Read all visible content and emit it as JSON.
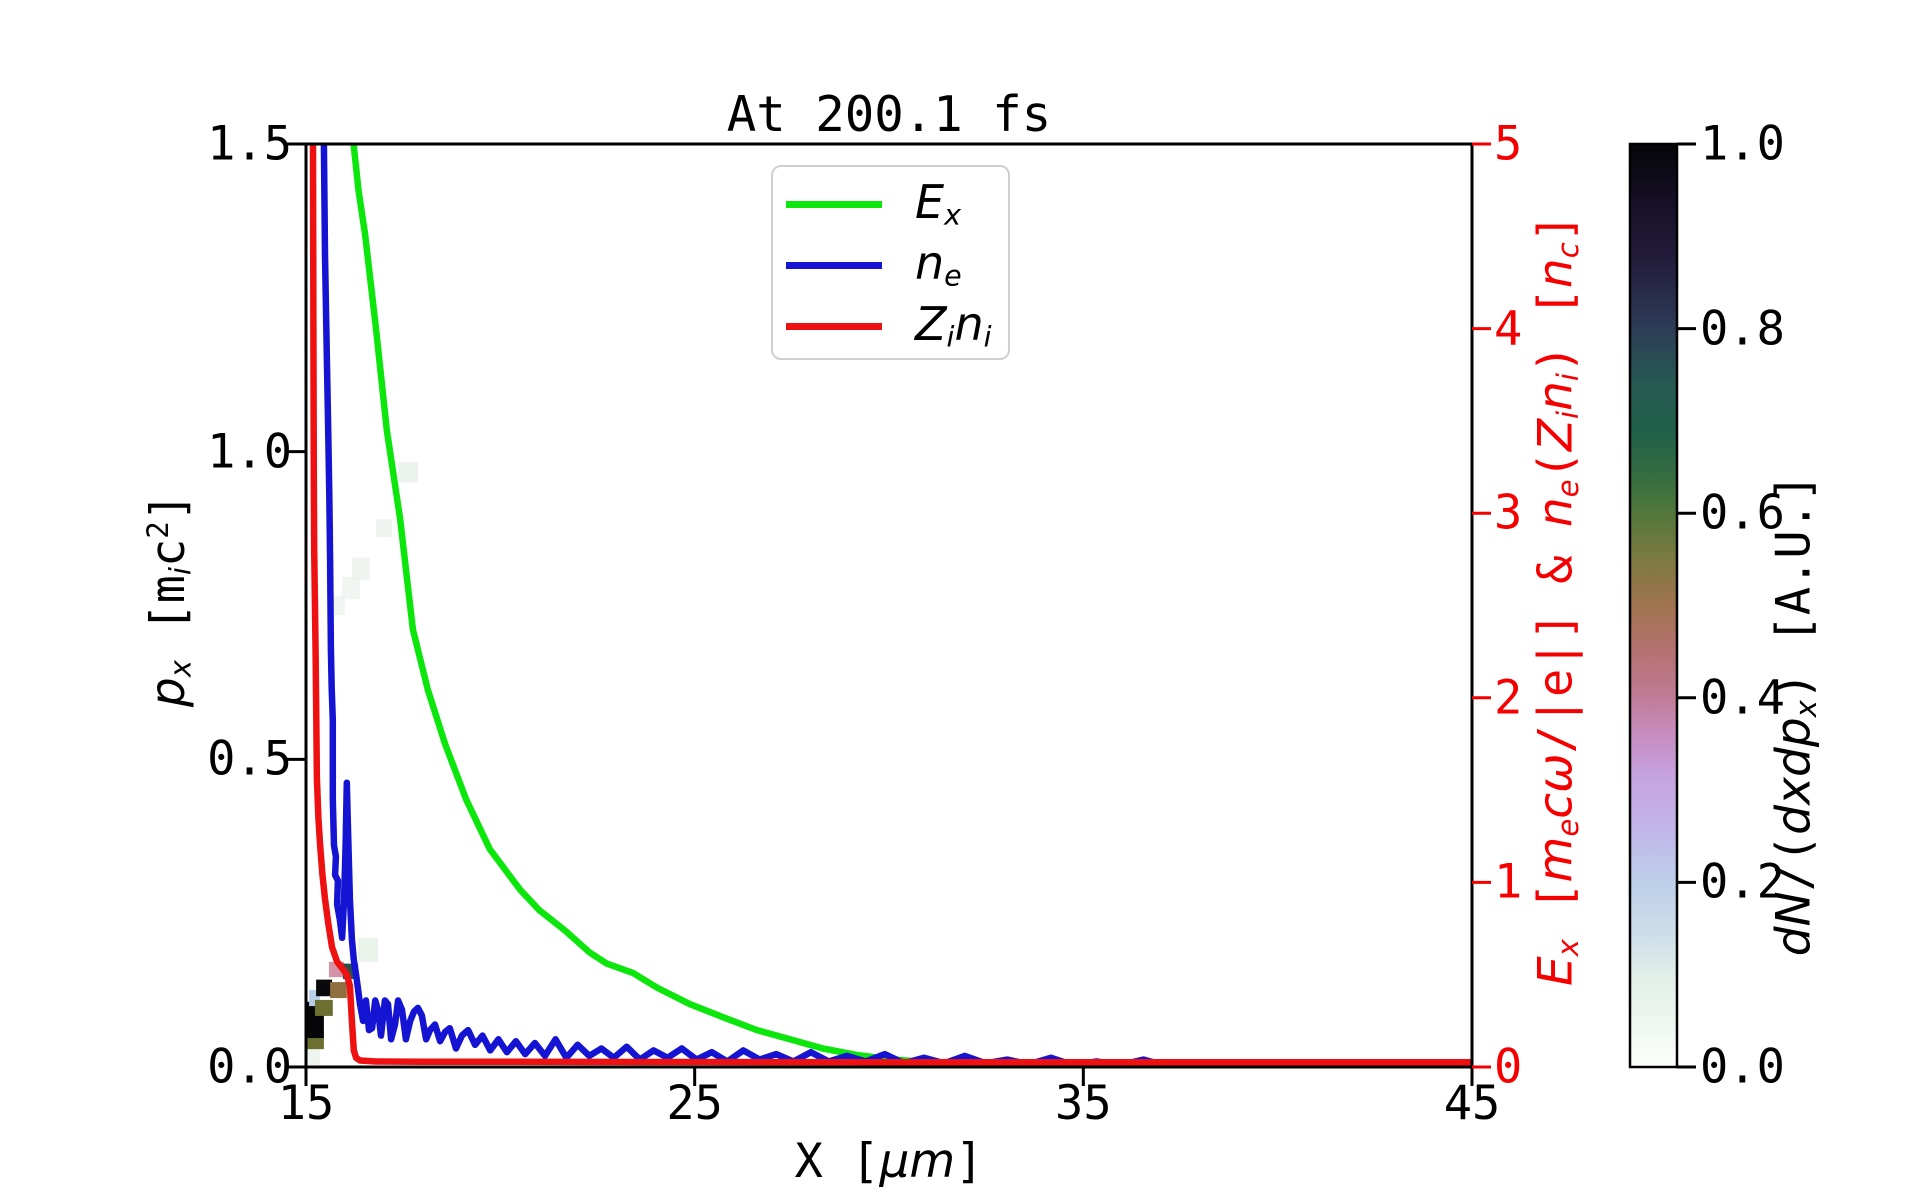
{
  "figure": {
    "title": "At 200.1 fs",
    "background": "#ffffff"
  },
  "axes": {
    "bottom": {
      "label_parts": [
        {
          "t": "X [",
          "s": "up"
        },
        {
          "t": "μm",
          "s": "it"
        },
        {
          "t": "]",
          "s": "up"
        }
      ],
      "ticks": [
        {
          "v": 15,
          "label": "15"
        },
        {
          "v": 25,
          "label": "25"
        },
        {
          "v": 35,
          "label": "35"
        },
        {
          "v": 45,
          "label": "45"
        }
      ],
      "range": [
        15,
        45
      ],
      "color": "#000000"
    },
    "left": {
      "label_parts": [
        {
          "t": "p",
          "s": "it"
        },
        {
          "t": "x",
          "s": "sub"
        },
        {
          "t": " [m",
          "s": "up"
        },
        {
          "t": "i",
          "s": "sub"
        },
        {
          "t": "c",
          "s": "up"
        },
        {
          "t": "2",
          "s": "sup"
        },
        {
          "t": "]",
          "s": "up"
        }
      ],
      "ticks": [
        {
          "v": 1.5,
          "label": "1.5"
        },
        {
          "v": 1.0,
          "label": "1.0"
        },
        {
          "v": 0.5,
          "label": "0.5"
        },
        {
          "v": 0.0,
          "label": "0.0"
        }
      ],
      "range": [
        0,
        1.5
      ],
      "color": "#000000"
    },
    "right": {
      "label_parts": [
        {
          "t": "E",
          "s": "it"
        },
        {
          "t": "x",
          "s": "sub"
        },
        {
          "t": " [",
          "s": "up"
        },
        {
          "t": "m",
          "s": "it"
        },
        {
          "t": "e",
          "s": "sub"
        },
        {
          "t": "c",
          "s": "it"
        },
        {
          "t": "ω",
          "s": "it"
        },
        {
          "t": "/|e|] & ",
          "s": "up"
        },
        {
          "t": "n",
          "s": "it"
        },
        {
          "t": "e",
          "s": "sub"
        },
        {
          "t": "(",
          "s": "up"
        },
        {
          "t": "Z",
          "s": "it"
        },
        {
          "t": "i",
          "s": "sub"
        },
        {
          "t": "n",
          "s": "it"
        },
        {
          "t": "i",
          "s": "sub"
        },
        {
          "t": ") [",
          "s": "up"
        },
        {
          "t": "n",
          "s": "it"
        },
        {
          "t": "c",
          "s": "sub"
        },
        {
          "t": "]",
          "s": "up"
        }
      ],
      "ticks": [
        {
          "v": 5,
          "label": "5"
        },
        {
          "v": 4,
          "label": "4"
        },
        {
          "v": 3,
          "label": "3"
        },
        {
          "v": 2,
          "label": "2"
        },
        {
          "v": 1,
          "label": "1"
        },
        {
          "v": 0,
          "label": "0"
        }
      ],
      "range": [
        0,
        5
      ],
      "color": "#f40000"
    }
  },
  "legend": {
    "items": [
      {
        "color": "#0ce60c",
        "parts": [
          {
            "t": "E",
            "s": "it"
          },
          {
            "t": "x",
            "s": "sub"
          }
        ]
      },
      {
        "color": "#1414d2",
        "parts": [
          {
            "t": "n",
            "s": "it"
          },
          {
            "t": "e",
            "s": "sub"
          }
        ]
      },
      {
        "color": "#ee1111",
        "parts": [
          {
            "t": "Z",
            "s": "it"
          },
          {
            "t": "i",
            "s": "sub"
          },
          {
            "t": "n",
            "s": "it"
          },
          {
            "t": "i",
            "s": "sub"
          }
        ]
      }
    ]
  },
  "colorbar": {
    "label_parts": [
      {
        "t": "d",
        "s": "it"
      },
      {
        "t": "N",
        "s": "it"
      },
      {
        "t": "/(",
        "s": "up"
      },
      {
        "t": "d",
        "s": "it"
      },
      {
        "t": "x",
        "s": "it"
      },
      {
        "t": "d",
        "s": "it"
      },
      {
        "t": "p",
        "s": "it"
      },
      {
        "t": "x",
        "s": "sub"
      },
      {
        "t": ") [A.U.]",
        "s": "up"
      }
    ],
    "ticks": [
      {
        "f": 1.0,
        "label": "1.0"
      },
      {
        "f": 0.8,
        "label": "0.8"
      },
      {
        "f": 0.6,
        "label": "0.6"
      },
      {
        "f": 0.4,
        "label": "0.4"
      },
      {
        "f": 0.2,
        "label": "0.2"
      },
      {
        "f": 0.0,
        "label": "0.0"
      }
    ],
    "gradient": [
      {
        "f": 1.0,
        "c": "#050507"
      },
      {
        "f": 0.93,
        "c": "#17112a"
      },
      {
        "f": 0.87,
        "c": "#241e3d"
      },
      {
        "f": 0.8,
        "c": "#2d3c57"
      },
      {
        "f": 0.74,
        "c": "#265a52"
      },
      {
        "f": 0.69,
        "c": "#1f6049"
      },
      {
        "f": 0.63,
        "c": "#3a7040"
      },
      {
        "f": 0.6,
        "c": "#53783a"
      },
      {
        "f": 0.55,
        "c": "#7c7a40"
      },
      {
        "f": 0.5,
        "c": "#a1734f"
      },
      {
        "f": 0.45,
        "c": "#b47271"
      },
      {
        "f": 0.4,
        "c": "#c07b96"
      },
      {
        "f": 0.36,
        "c": "#c78cc0"
      },
      {
        "f": 0.31,
        "c": "#c6a5e2"
      },
      {
        "f": 0.26,
        "c": "#c2b4e9"
      },
      {
        "f": 0.2,
        "c": "#bdcfe9"
      },
      {
        "f": 0.14,
        "c": "#cfdfe9"
      },
      {
        "f": 0.1,
        "c": "#dfeee6"
      },
      {
        "f": 0.05,
        "c": "#eef6ee"
      },
      {
        "f": 0.0,
        "c": "#fdfffd"
      }
    ]
  },
  "chart_data": {
    "type": "composite",
    "title": "At 200.1 fs",
    "xlabel": "X [um]",
    "ylabel_left": "p_x [m_i c^2]",
    "ylabel_right": "E_x [m_e c w/|e|] & n_e(Z_i n_i) [n_c]",
    "x_range": [
      15,
      45
    ],
    "left_range": [
      0,
      1.5
    ],
    "right_range": [
      0,
      5
    ],
    "grid": false,
    "legend_position": "upper center",
    "series": [
      {
        "name": "E_x",
        "color": "#0ce60c",
        "axis": "right",
        "points": [
          [
            15.9,
            7.0
          ],
          [
            16.05,
            5.8
          ],
          [
            16.2,
            5.05
          ],
          [
            16.35,
            4.75
          ],
          [
            16.52,
            4.51
          ],
          [
            16.8,
            4.0
          ],
          [
            17.08,
            3.45
          ],
          [
            17.42,
            2.97
          ],
          [
            17.75,
            2.37
          ],
          [
            18.14,
            2.04
          ],
          [
            18.58,
            1.75
          ],
          [
            19.12,
            1.45
          ],
          [
            19.73,
            1.18
          ],
          [
            20.51,
            0.96
          ],
          [
            21.0,
            0.85
          ],
          [
            21.66,
            0.74
          ],
          [
            22.3,
            0.62
          ],
          [
            22.74,
            0.56
          ],
          [
            23.41,
            0.51
          ],
          [
            24.03,
            0.43
          ],
          [
            24.88,
            0.34
          ],
          [
            25.73,
            0.27
          ],
          [
            26.6,
            0.2
          ],
          [
            27.45,
            0.15
          ],
          [
            28.3,
            0.1
          ],
          [
            29.17,
            0.065
          ],
          [
            30.02,
            0.043
          ],
          [
            30.87,
            0.027
          ],
          [
            31.75,
            0.021
          ],
          [
            32.6,
            0.013
          ],
          [
            33.5,
            0.009
          ],
          [
            34.5,
            0.006
          ],
          [
            35.5,
            0.004
          ],
          [
            37.0,
            0.003
          ],
          [
            39.0,
            0.002
          ],
          [
            42.0,
            0.001
          ],
          [
            45.0,
            0.001
          ]
        ]
      },
      {
        "name": "n_e",
        "color": "#1414d2",
        "axis": "right",
        "points": [
          [
            15.44,
            6.5
          ],
          [
            15.46,
            5.0
          ],
          [
            15.49,
            4.4
          ],
          [
            15.51,
            4.16
          ],
          [
            15.54,
            3.8
          ],
          [
            15.57,
            3.45
          ],
          [
            15.6,
            3.1
          ],
          [
            15.62,
            2.75
          ],
          [
            15.64,
            2.26
          ],
          [
            15.66,
            2.05
          ],
          [
            15.69,
            1.88
          ],
          [
            15.69,
            1.45
          ],
          [
            15.72,
            1.2
          ],
          [
            15.77,
            1.14
          ],
          [
            15.75,
            1.04
          ],
          [
            15.82,
            1.01
          ],
          [
            15.8,
            0.88
          ],
          [
            15.87,
            0.8
          ],
          [
            15.93,
            0.7
          ],
          [
            15.98,
            0.91
          ],
          [
            16.02,
            1.2
          ],
          [
            16.05,
            1.54
          ],
          [
            16.08,
            1.29
          ],
          [
            16.13,
            0.91
          ],
          [
            16.18,
            0.69
          ],
          [
            16.23,
            0.58
          ],
          [
            16.29,
            0.5
          ],
          [
            16.34,
            0.42
          ],
          [
            16.39,
            0.34
          ],
          [
            16.47,
            0.25
          ],
          [
            16.54,
            0.36
          ],
          [
            16.62,
            0.2
          ],
          [
            16.7,
            0.21
          ],
          [
            16.78,
            0.36
          ],
          [
            16.85,
            0.31
          ],
          [
            16.93,
            0.17
          ],
          [
            17.03,
            0.36
          ],
          [
            17.11,
            0.34
          ],
          [
            17.19,
            0.15
          ],
          [
            17.29,
            0.23
          ],
          [
            17.37,
            0.36
          ],
          [
            17.47,
            0.31
          ],
          [
            17.57,
            0.15
          ],
          [
            17.68,
            0.25
          ],
          [
            17.78,
            0.3
          ],
          [
            17.88,
            0.32
          ],
          [
            17.98,
            0.28
          ],
          [
            18.09,
            0.15
          ],
          [
            18.19,
            0.2
          ],
          [
            18.32,
            0.23
          ],
          [
            18.45,
            0.14
          ],
          [
            18.58,
            0.19
          ],
          [
            18.7,
            0.21
          ],
          [
            18.86,
            0.1
          ],
          [
            19.01,
            0.17
          ],
          [
            19.17,
            0.2
          ],
          [
            19.35,
            0.12
          ],
          [
            19.54,
            0.17
          ],
          [
            19.74,
            0.09
          ],
          [
            19.95,
            0.15
          ],
          [
            20.17,
            0.08
          ],
          [
            20.4,
            0.14
          ],
          [
            20.64,
            0.07
          ],
          [
            20.89,
            0.13
          ],
          [
            21.15,
            0.06
          ],
          [
            21.42,
            0.15
          ],
          [
            21.7,
            0.05
          ],
          [
            21.99,
            0.12
          ],
          [
            22.29,
            0.06
          ],
          [
            22.6,
            0.1
          ],
          [
            22.92,
            0.05
          ],
          [
            23.25,
            0.11
          ],
          [
            23.59,
            0.04
          ],
          [
            23.94,
            0.09
          ],
          [
            24.3,
            0.05
          ],
          [
            24.67,
            0.1
          ],
          [
            25.05,
            0.04
          ],
          [
            25.44,
            0.08
          ],
          [
            25.84,
            0.03
          ],
          [
            26.25,
            0.09
          ],
          [
            26.67,
            0.04
          ],
          [
            27.1,
            0.07
          ],
          [
            27.54,
            0.03
          ],
          [
            27.99,
            0.08
          ],
          [
            28.45,
            0.03
          ],
          [
            28.92,
            0.06
          ],
          [
            29.4,
            0.03
          ],
          [
            29.89,
            0.07
          ],
          [
            30.39,
            0.02
          ],
          [
            30.9,
            0.05
          ],
          [
            31.42,
            0.02
          ],
          [
            31.95,
            0.06
          ],
          [
            32.49,
            0.02
          ],
          [
            33.04,
            0.04
          ],
          [
            33.6,
            0.015
          ],
          [
            34.17,
            0.05
          ],
          [
            34.75,
            0.01
          ],
          [
            35.34,
            0.03
          ],
          [
            35.94,
            0.01
          ],
          [
            36.55,
            0.04
          ],
          [
            37.17,
            0.005
          ],
          [
            37.8,
            0.02
          ],
          [
            38.2,
            0.003
          ],
          [
            39.0,
            0.002
          ],
          [
            41.0,
            0.001
          ],
          [
            45.0,
            0.001
          ]
        ]
      },
      {
        "name": "Z_i n_i",
        "color": "#ee1111",
        "axis": "right",
        "points": [
          [
            15.17,
            6.5
          ],
          [
            15.18,
            5.0
          ],
          [
            15.19,
            4.0
          ],
          [
            15.2,
            3.2
          ],
          [
            15.21,
            2.8
          ],
          [
            15.23,
            2.53
          ],
          [
            15.25,
            2.2
          ],
          [
            15.28,
            1.56
          ],
          [
            15.32,
            1.35
          ],
          [
            15.36,
            1.21
          ],
          [
            15.42,
            1.05
          ],
          [
            15.49,
            0.91
          ],
          [
            15.57,
            0.78
          ],
          [
            15.67,
            0.65
          ],
          [
            15.8,
            0.57
          ],
          [
            15.95,
            0.53
          ],
          [
            16.05,
            0.5
          ],
          [
            16.13,
            0.44
          ],
          [
            16.18,
            0.25
          ],
          [
            16.23,
            0.09
          ],
          [
            16.29,
            0.05
          ],
          [
            16.39,
            0.035
          ],
          [
            16.8,
            0.03
          ],
          [
            18.0,
            0.028
          ],
          [
            20.0,
            0.028
          ],
          [
            25.0,
            0.027
          ],
          [
            30.0,
            0.026
          ],
          [
            35.0,
            0.026
          ],
          [
            40.0,
            0.026
          ],
          [
            45.0,
            0.026
          ]
        ]
      }
    ],
    "heatmap": {
      "quantity": "dN/(dxdp_x) [A.U.]",
      "colormap": "cubehelix_r",
      "value_range": [
        0.0,
        1.0
      ],
      "cells": [
        {
          "x": 15.0,
          "p": 0.003,
          "w": 0.36,
          "h": 0.026,
          "c": "#edf5ee",
          "a": 1
        },
        {
          "x": 15.0,
          "p": 0.029,
          "w": 0.46,
          "h": 0.03,
          "c": "#6b7030",
          "a": 1
        },
        {
          "x": 15.0,
          "p": 0.047,
          "w": 0.46,
          "h": 0.059,
          "c": "#060608",
          "a": 1
        },
        {
          "x": 15.08,
          "p": 0.099,
          "w": 0.28,
          "h": 0.026,
          "c": "#b9cfe8",
          "a": 1
        },
        {
          "x": 15.23,
          "p": 0.083,
          "w": 0.46,
          "h": 0.026,
          "c": "#6b7030",
          "a": 1
        },
        {
          "x": 15.26,
          "p": 0.115,
          "w": 0.41,
          "h": 0.027,
          "c": "#0a0a0c",
          "a": 1
        },
        {
          "x": 15.62,
          "p": 0.112,
          "w": 0.43,
          "h": 0.026,
          "c": "#8f6f40",
          "a": 1
        },
        {
          "x": 15.59,
          "p": 0.146,
          "w": 0.39,
          "h": 0.025,
          "c": "#d294a6",
          "a": 1
        },
        {
          "x": 15.95,
          "p": 0.143,
          "w": 0.39,
          "h": 0.025,
          "c": "#2a5047",
          "a": 1
        },
        {
          "x": 16.34,
          "p": 0.171,
          "w": 0.51,
          "h": 0.039,
          "c": "#e9f3e9",
          "a": 1
        },
        {
          "x": 17.37,
          "p": 0.95,
          "w": 0.51,
          "h": 0.033,
          "c": "#dce8df",
          "a": 0.55
        },
        {
          "x": 16.8,
          "p": 0.861,
          "w": 0.41,
          "h": 0.029,
          "c": "#dfeae2",
          "a": 0.5
        },
        {
          "x": 16.18,
          "p": 0.792,
          "w": 0.47,
          "h": 0.036,
          "c": "#dfeae2",
          "a": 0.5
        },
        {
          "x": 15.93,
          "p": 0.76,
          "w": 0.46,
          "h": 0.036,
          "c": "#e4ede6",
          "a": 0.5
        },
        {
          "x": 15.59,
          "p": 0.734,
          "w": 0.41,
          "h": 0.032,
          "c": "#e4ede6",
          "a": 0.5
        }
      ]
    }
  }
}
